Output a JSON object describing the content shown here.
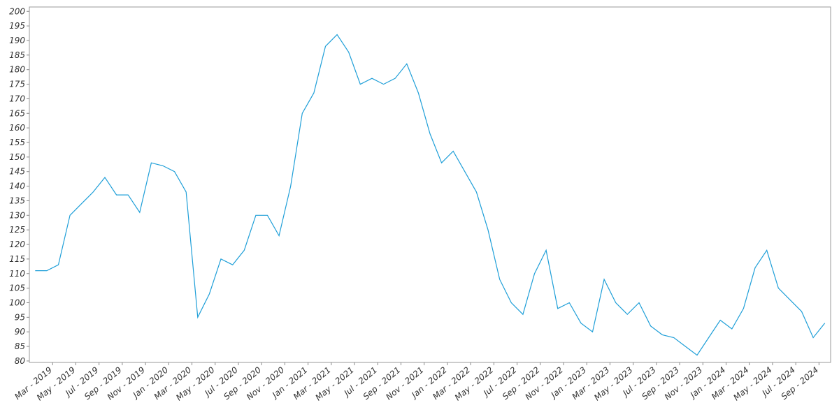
{
  "chart_data": {
    "type": "line",
    "x": [
      "2019-01",
      "2019-02",
      "2019-03",
      "2019-04",
      "2019-05",
      "2019-06",
      "2019-07",
      "2019-08",
      "2019-09",
      "2019-10",
      "2019-11",
      "2019-12",
      "2020-01",
      "2020-02",
      "2020-03",
      "2020-04",
      "2020-05",
      "2020-06",
      "2020-07",
      "2020-08",
      "2020-09",
      "2020-10",
      "2020-11",
      "2020-12",
      "2021-01",
      "2021-02",
      "2021-03",
      "2021-04",
      "2021-05",
      "2021-06",
      "2021-07",
      "2021-08",
      "2021-09",
      "2021-10",
      "2021-11",
      "2021-12",
      "2022-01",
      "2022-02",
      "2022-03",
      "2022-04",
      "2022-05",
      "2022-06",
      "2022-07",
      "2022-08",
      "2022-09",
      "2022-10",
      "2022-11",
      "2022-12",
      "2023-01",
      "2023-02",
      "2023-03",
      "2023-04",
      "2023-05",
      "2023-06",
      "2023-07",
      "2023-08",
      "2023-09",
      "2023-10",
      "2023-11",
      "2023-12",
      "2024-01",
      "2024-02",
      "2024-03",
      "2024-04",
      "2024-05",
      "2024-06",
      "2024-07",
      "2024-08",
      "2024-09"
    ],
    "series": [
      {
        "color": "#1f9fd8",
        "values": [
          111,
          111,
          113,
          130,
          134,
          138,
          143,
          137,
          137,
          131,
          148,
          147,
          145,
          138,
          95,
          103,
          115,
          113,
          118,
          130,
          130,
          123,
          140,
          165,
          172,
          188,
          192,
          186,
          175,
          177,
          175,
          177,
          182,
          172,
          158,
          148,
          152,
          145,
          138,
          125,
          108,
          100,
          96,
          110,
          118,
          98,
          100,
          93,
          90,
          108,
          100,
          96,
          100,
          92,
          89,
          88,
          85,
          82,
          88,
          94,
          91,
          98,
          112,
          118,
          105,
          101,
          97,
          88,
          93
        ]
      }
    ],
    "xlim": [
      "2019-01",
      "2024-10"
    ],
    "xticks": [
      {
        "value": "2019-03",
        "label": "Mar - 2019"
      },
      {
        "value": "2019-05",
        "label": "May - 2019"
      },
      {
        "value": "2019-07",
        "label": "Jul - 2019"
      },
      {
        "value": "2019-09",
        "label": "Sep - 2019"
      },
      {
        "value": "2019-11",
        "label": "Nov - 2019"
      },
      {
        "value": "2020-01",
        "label": "Jan - 2020"
      },
      {
        "value": "2020-03",
        "label": "Mar - 2020"
      },
      {
        "value": "2020-05",
        "label": "May - 2020"
      },
      {
        "value": "2020-07",
        "label": "Jul - 2020"
      },
      {
        "value": "2020-09",
        "label": "Sep - 2020"
      },
      {
        "value": "2020-11",
        "label": "Nov - 2020"
      },
      {
        "value": "2021-01",
        "label": "Jan - 2021"
      },
      {
        "value": "2021-03",
        "label": "Mar - 2021"
      },
      {
        "value": "2021-05",
        "label": "May - 2021"
      },
      {
        "value": "2021-07",
        "label": "Jul - 2021"
      },
      {
        "value": "2021-09",
        "label": "Sep - 2021"
      },
      {
        "value": "2021-11",
        "label": "Nov - 2021"
      },
      {
        "value": "2022-01",
        "label": "Jan - 2022"
      },
      {
        "value": "2022-03",
        "label": "Mar - 2022"
      },
      {
        "value": "2022-05",
        "label": "May - 2022"
      },
      {
        "value": "2022-07",
        "label": "Jul - 2022"
      },
      {
        "value": "2022-09",
        "label": "Sep - 2022"
      },
      {
        "value": "2022-11",
        "label": "Nov - 2022"
      },
      {
        "value": "2023-01",
        "label": "Jan - 2023"
      },
      {
        "value": "2023-03",
        "label": "Mar - 2023"
      },
      {
        "value": "2023-05",
        "label": "May - 2023"
      },
      {
        "value": "2023-07",
        "label": "Jul - 2023"
      },
      {
        "value": "2023-09",
        "label": "Sep - 2023"
      },
      {
        "value": "2023-11",
        "label": "Nov - 2023"
      },
      {
        "value": "2024-01",
        "label": "Jan - 2024"
      },
      {
        "value": "2024-03",
        "label": "Mar - 2024"
      },
      {
        "value": "2024-05",
        "label": "May - 2024"
      },
      {
        "value": "2024-07",
        "label": "Jul - 2024"
      },
      {
        "value": "2024-09",
        "label": "Sep - 2024"
      }
    ],
    "ylim": [
      79.5,
      201.5
    ],
    "yticks": [
      80,
      85,
      90,
      95,
      100,
      105,
      110,
      115,
      120,
      125,
      130,
      135,
      140,
      145,
      150,
      155,
      160,
      165,
      170,
      175,
      180,
      185,
      190,
      195,
      200
    ]
  }
}
